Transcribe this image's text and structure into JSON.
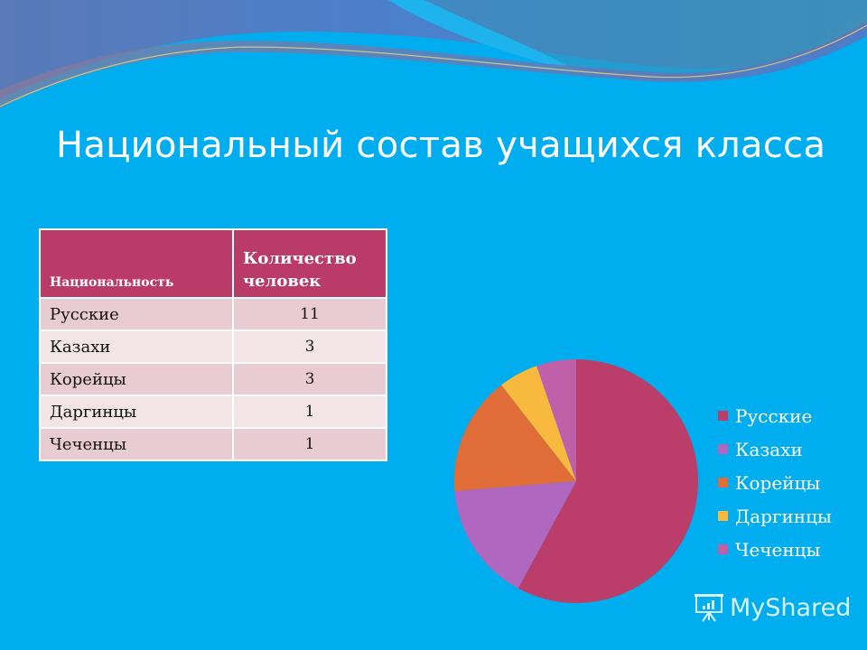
{
  "slide": {
    "title": "Национальный состав учащихся класса",
    "background_color": "#00aeef"
  },
  "table": {
    "headers": [
      "Национальность",
      "Количество человек"
    ],
    "rows": [
      {
        "nationality": "Русские",
        "count": "11"
      },
      {
        "nationality": "Казахи",
        "count": "3"
      },
      {
        "nationality": "Корейцы",
        "count": "3"
      },
      {
        "nationality": "Даргинцы",
        "count": "1"
      },
      {
        "nationality": "Чеченцы",
        "count": "1"
      }
    ]
  },
  "legend": {
    "items": [
      {
        "label": "Русские",
        "color": "#bb3d69"
      },
      {
        "label": "Казахи",
        "color": "#b067c0"
      },
      {
        "label": "Корейцы",
        "color": "#e06c37"
      },
      {
        "label": "Даргинцы",
        "color": "#f7b93e"
      },
      {
        "label": "Чеченцы",
        "color": "#c060a8"
      }
    ]
  },
  "chart_data": {
    "type": "pie",
    "title": "Национальный состав учащихся класса",
    "categories": [
      "Русские",
      "Казахи",
      "Корейцы",
      "Даргинцы",
      "Чеченцы"
    ],
    "values": [
      11,
      3,
      3,
      1,
      1
    ],
    "colors": [
      "#bb3d69",
      "#b067c0",
      "#e06c37",
      "#f7b93e",
      "#c060a8"
    ],
    "legend_position": "right",
    "start_angle": "12 o'clock, clockwise"
  },
  "watermark": {
    "text": "MyShared"
  }
}
